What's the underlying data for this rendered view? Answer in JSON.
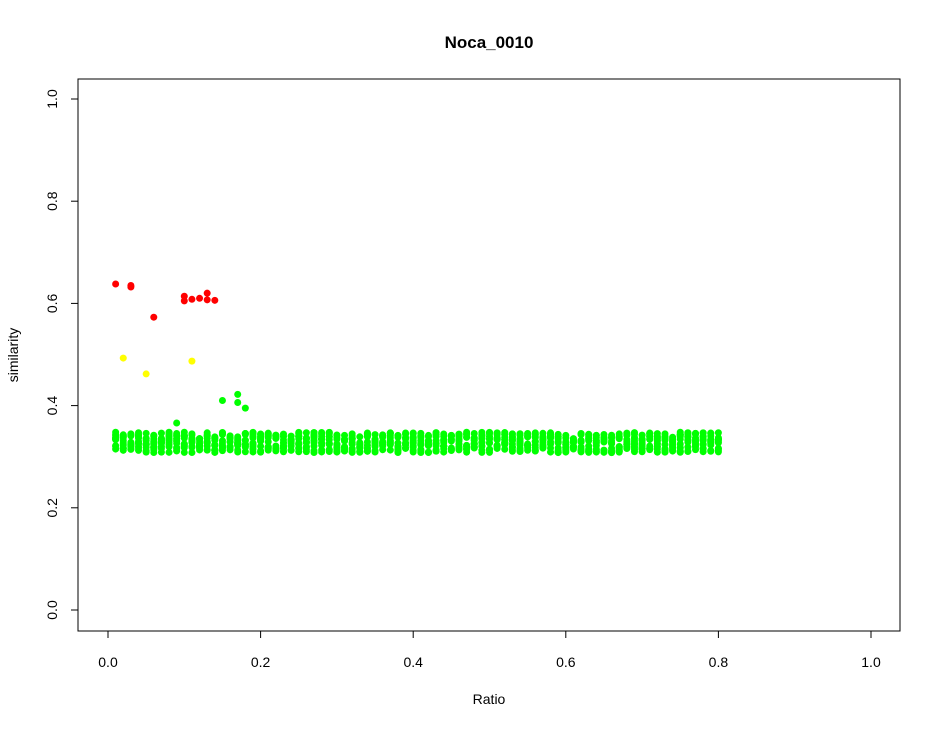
{
  "chart_data": {
    "type": "scatter",
    "title": "Noca_0010",
    "xlabel": "Ratio",
    "ylabel": "similarity",
    "xlim": [
      0,
      1
    ],
    "ylim": [
      0,
      1
    ],
    "xticks": [
      "0.0",
      "0.2",
      "0.4",
      "0.6",
      "0.8",
      "1.0"
    ],
    "yticks": [
      "0.0",
      "0.2",
      "0.4",
      "0.6",
      "0.8",
      "1.0"
    ],
    "grid": false,
    "legend": "none",
    "series": [
      {
        "color": "#ff0000",
        "points": [
          [
            0.01,
            0.638
          ],
          [
            0.03,
            0.635
          ],
          [
            0.03,
            0.632
          ],
          [
            0.06,
            0.573
          ],
          [
            0.1,
            0.614
          ],
          [
            0.1,
            0.605
          ],
          [
            0.11,
            0.608
          ],
          [
            0.12,
            0.61
          ],
          [
            0.13,
            0.62
          ],
          [
            0.13,
            0.607
          ],
          [
            0.14,
            0.606
          ]
        ]
      },
      {
        "color": "#ffff00",
        "points": [
          [
            0.02,
            0.493
          ],
          [
            0.05,
            0.462
          ],
          [
            0.11,
            0.487
          ]
        ]
      },
      {
        "color": "#00ff00",
        "outliers": [
          [
            0.15,
            0.41
          ],
          [
            0.17,
            0.422
          ],
          [
            0.17,
            0.406
          ],
          [
            0.18,
            0.395
          ],
          [
            0.09,
            0.366
          ]
        ],
        "band": {
          "x_start": 0.01,
          "x_end": 0.8,
          "x_step": 0.01,
          "per_x": 12,
          "y_center": 0.328,
          "y_halfwidth": 0.02
        }
      }
    ]
  }
}
